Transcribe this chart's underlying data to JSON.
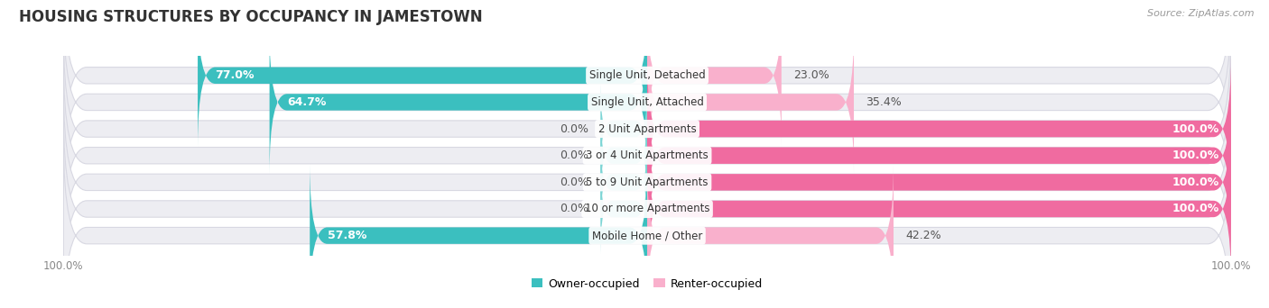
{
  "title": "HOUSING STRUCTURES BY OCCUPANCY IN JAMESTOWN",
  "source": "Source: ZipAtlas.com",
  "categories": [
    "Single Unit, Detached",
    "Single Unit, Attached",
    "2 Unit Apartments",
    "3 or 4 Unit Apartments",
    "5 to 9 Unit Apartments",
    "10 or more Apartments",
    "Mobile Home / Other"
  ],
  "owner_pct": [
    77.0,
    64.7,
    0.0,
    0.0,
    0.0,
    0.0,
    57.8
  ],
  "renter_pct": [
    23.0,
    35.4,
    100.0,
    100.0,
    100.0,
    100.0,
    42.2
  ],
  "owner_color": "#3BBFBF",
  "owner_color_light": "#7DD5D5",
  "renter_color": "#F06BA0",
  "renter_color_light": "#F9B0CC",
  "bar_bg_color": "#EDEDF2",
  "bar_bg_border": "#D8D8E2",
  "background_color": "#FFFFFF",
  "title_fontsize": 12,
  "source_fontsize": 8,
  "pct_fontsize": 9,
  "cat_fontsize": 8.5,
  "bar_height": 0.62,
  "xlim_left": -100,
  "xlim_right": 100,
  "legend_owner": "Owner-occupied",
  "legend_renter": "Renter-occupied",
  "tick_label_color": "#888888"
}
